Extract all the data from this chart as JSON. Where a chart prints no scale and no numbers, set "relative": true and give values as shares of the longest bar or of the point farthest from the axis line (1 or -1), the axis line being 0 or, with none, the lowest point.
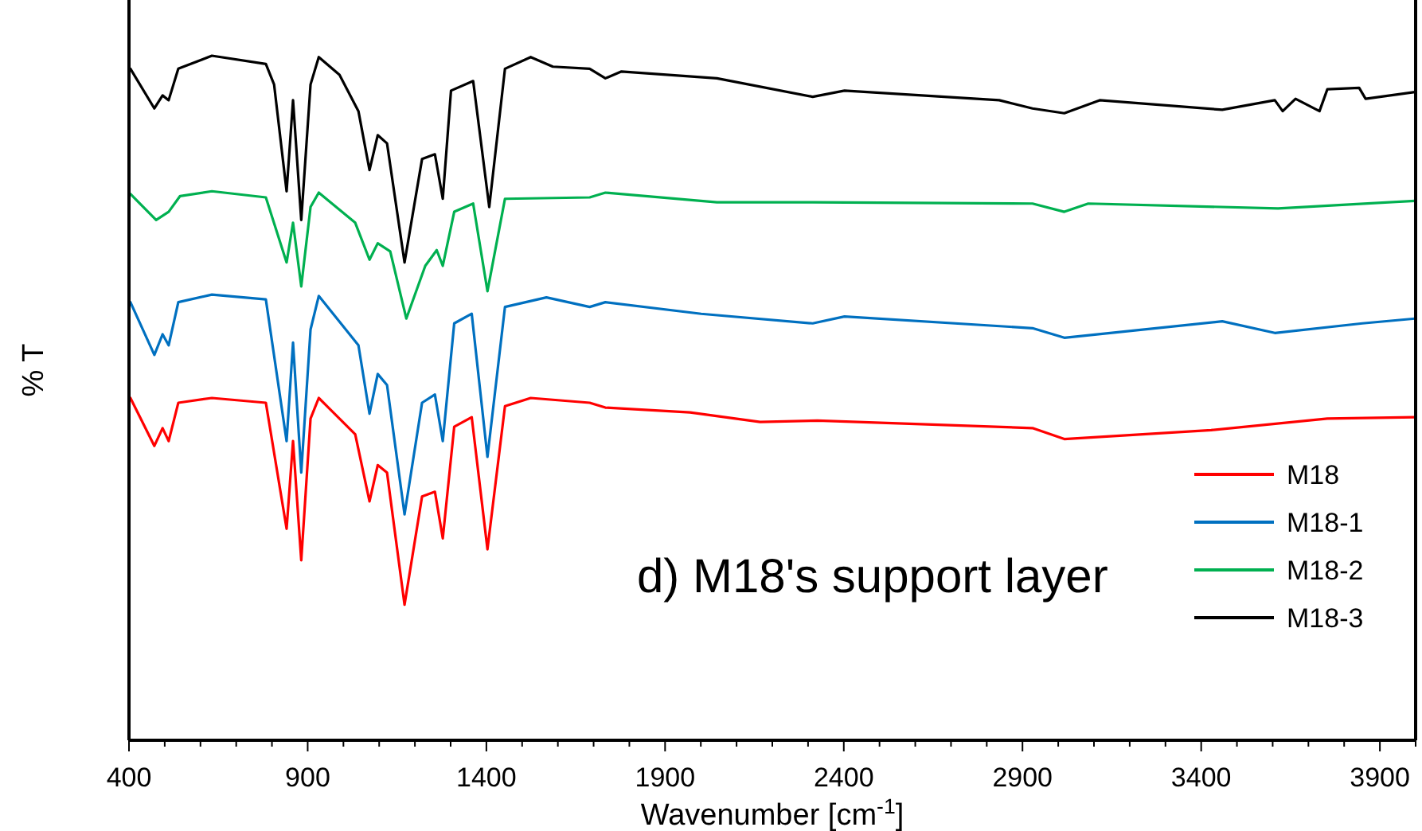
{
  "chart_data": {
    "type": "line",
    "relative": true,
    "xlabel": "Wavenumber [cm$^{-1}$]",
    "ylabel": "% T",
    "xlim": [
      400,
      4000
    ],
    "xticks": [
      400,
      {
        "value": 500,
        "label": null
      },
      {
        "value": 600,
        "label": null
      },
      {
        "value": 700,
        "label": null
      },
      {
        "value": 800,
        "label": null
      },
      900,
      {
        "value": 1000,
        "label": null
      },
      {
        "value": 1100,
        "label": null
      },
      {
        "value": 1200,
        "label": null
      },
      {
        "value": 1300,
        "label": null
      },
      1400,
      {
        "value": 1500,
        "label": null
      },
      {
        "value": 1600,
        "label": null
      },
      {
        "value": 1700,
        "label": null
      },
      {
        "value": 1800,
        "label": null
      },
      1900,
      {
        "value": 2000,
        "label": null
      },
      {
        "value": 2100,
        "label": null
      },
      {
        "value": 2200,
        "label": null
      },
      {
        "value": 2300,
        "label": null
      },
      2400,
      {
        "value": 2500,
        "label": null
      },
      {
        "value": 2600,
        "label": null
      },
      {
        "value": 2700,
        "label": null
      },
      {
        "value": 2800,
        "label": null
      },
      2900,
      {
        "value": 3000,
        "label": null
      },
      {
        "value": 3100,
        "label": null
      },
      {
        "value": 3200,
        "label": null
      },
      {
        "value": 3300,
        "label": null
      },
      3400,
      {
        "value": 3500,
        "label": null
      },
      {
        "value": 3600,
        "label": null
      },
      {
        "value": 3700,
        "label": null
      },
      {
        "value": 3800,
        "label": null
      },
      3900,
      {
        "value": 4000,
        "label": null
      }
    ],
    "legend": "bottom right",
    "grid": false,
    "marker": "none",
    "line_style": "solid",
    "annotations": [
      "d) M18's support layer"
    ],
    "series": [
      {
        "name": "M18",
        "color": "#ff0000",
        "x": [
          404,
          471,
          494,
          511,
          538,
          632,
          783,
          841,
          859,
          882,
          908,
          931,
          1033,
          1073,
          1096,
          1122,
          1171,
          1220,
          1256,
          1278,
          1310,
          1359,
          1403,
          1452,
          1524,
          1689,
          1733,
          1970,
          2166,
          2326,
          2928,
          3017,
          3428,
          3753,
          3998
        ],
        "values": [
          0.5,
          0.43,
          0.456,
          0.437,
          0.493,
          0.5,
          0.493,
          0.309,
          0.437,
          0.263,
          0.47,
          0.5,
          0.447,
          0.349,
          0.402,
          0.391,
          0.198,
          0.356,
          0.363,
          0.295,
          0.458,
          0.472,
          0.279,
          0.488,
          0.5,
          0.493,
          0.486,
          0.479,
          0.465,
          0.467,
          0.456,
          0.44,
          0.453,
          0.47,
          0.472
        ]
      },
      {
        "name": "M18-1",
        "color": "#0070c0",
        "x": [
          404,
          471,
          494,
          511,
          538,
          632,
          783,
          841,
          859,
          882,
          908,
          931,
          1042,
          1073,
          1096,
          1122,
          1171,
          1220,
          1256,
          1278,
          1310,
          1359,
          1403,
          1452,
          1568,
          1689,
          1733,
          2001,
          2313,
          2402,
          2928,
          3017,
          3459,
          3606,
          3851,
          3998
        ],
        "values": [
          0.64,
          0.563,
          0.593,
          0.577,
          0.64,
          0.651,
          0.644,
          0.437,
          0.581,
          0.391,
          0.6,
          0.649,
          0.577,
          0.477,
          0.535,
          0.519,
          0.33,
          0.493,
          0.505,
          0.437,
          0.609,
          0.623,
          0.414,
          0.633,
          0.647,
          0.633,
          0.64,
          0.623,
          0.609,
          0.619,
          0.602,
          0.588,
          0.612,
          0.595,
          0.609,
          0.616
        ]
      },
      {
        "name": "M18-2",
        "color": "#00b050",
        "x": [
          404,
          476,
          511,
          543,
          632,
          783,
          841,
          859,
          882,
          908,
          931,
          1033,
          1073,
          1096,
          1131,
          1176,
          1229,
          1261,
          1278,
          1310,
          1363,
          1403,
          1452,
          1689,
          1733,
          2045,
          2313,
          2928,
          3017,
          3084,
          3615,
          3998
        ],
        "values": [
          0.798,
          0.76,
          0.772,
          0.795,
          0.802,
          0.793,
          0.698,
          0.756,
          0.663,
          0.779,
          0.8,
          0.756,
          0.702,
          0.726,
          0.714,
          0.616,
          0.693,
          0.716,
          0.693,
          0.772,
          0.784,
          0.656,
          0.791,
          0.793,
          0.8,
          0.786,
          0.786,
          0.784,
          0.772,
          0.784,
          0.777,
          0.788
        ]
      },
      {
        "name": "M18-3",
        "color": "#000000",
        "x": [
          404,
          471,
          494,
          511,
          538,
          632,
          783,
          806,
          841,
          859,
          882,
          908,
          931,
          989,
          1042,
          1073,
          1096,
          1122,
          1171,
          1220,
          1256,
          1278,
          1301,
          1363,
          1408,
          1452,
          1524,
          1586,
          1689,
          1733,
          1778,
          2045,
          2313,
          2402,
          2835,
          2928,
          3017,
          3116,
          3459,
          3606,
          3628,
          3664,
          3731,
          3753,
          3842,
          3860,
          3998
        ],
        "values": [
          0.981,
          0.923,
          0.942,
          0.935,
          0.981,
          1,
          0.988,
          0.958,
          0.802,
          0.935,
          0.76,
          0.958,
          0.998,
          0.972,
          0.919,
          0.833,
          0.884,
          0.872,
          0.698,
          0.849,
          0.856,
          0.791,
          0.949,
          0.963,
          0.779,
          0.981,
          0.998,
          0.984,
          0.981,
          0.967,
          0.977,
          0.967,
          0.94,
          0.949,
          0.935,
          0.923,
          0.916,
          0.935,
          0.921,
          0.935,
          0.919,
          0.937,
          0.919,
          0.951,
          0.953,
          0.937,
          0.947
        ]
      }
    ]
  }
}
